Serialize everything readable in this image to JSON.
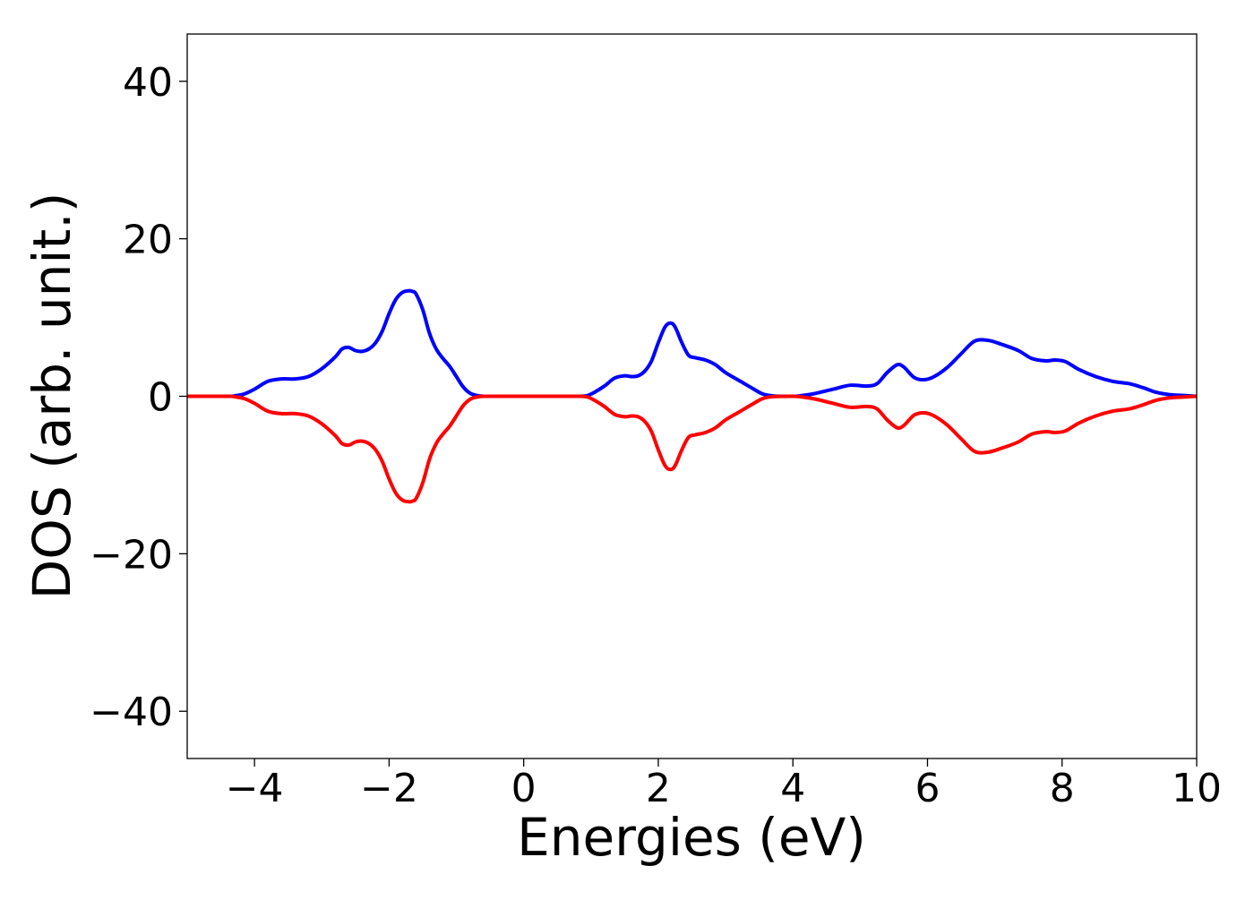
{
  "chart_data": {
    "type": "line",
    "title": "",
    "xlabel": "Energies (eV)",
    "ylabel": "DOS (arb. unit.)",
    "xlim": [
      -5,
      10
    ],
    "ylim": [
      -46,
      46
    ],
    "xticks": [
      -4,
      -2,
      0,
      2,
      4,
      6,
      8,
      10
    ],
    "yticks": [
      -40,
      -20,
      0,
      20,
      40
    ],
    "xtick_labels": [
      "−4",
      "−2",
      "0",
      "2",
      "4",
      "6",
      "8",
      "10"
    ],
    "ytick_labels": [
      "−40",
      "−20",
      "0",
      "20",
      "40"
    ],
    "grid": false,
    "legend": "none",
    "x": [
      -5.0,
      -4.4,
      -4.3,
      -4.15,
      -4.0,
      -3.8,
      -3.6,
      -3.4,
      -3.2,
      -3.0,
      -2.8,
      -2.7,
      -2.6,
      -2.5,
      -2.4,
      -2.3,
      -2.2,
      -2.1,
      -2.0,
      -1.9,
      -1.8,
      -1.7,
      -1.65,
      -1.6,
      -1.5,
      -1.4,
      -1.3,
      -1.2,
      -1.1,
      -1.0,
      -0.9,
      -0.8,
      -0.7,
      -0.6,
      -0.5,
      0.0,
      0.5,
      0.85,
      0.95,
      1.05,
      1.2,
      1.35,
      1.5,
      1.6,
      1.7,
      1.8,
      1.9,
      2.0,
      2.1,
      2.18,
      2.25,
      2.35,
      2.45,
      2.55,
      2.7,
      2.85,
      3.0,
      3.2,
      3.4,
      3.55,
      3.7,
      4.0,
      4.1,
      4.3,
      4.6,
      4.85,
      5.1,
      5.25,
      5.4,
      5.55,
      5.65,
      5.8,
      5.95,
      6.1,
      6.3,
      6.5,
      6.7,
      6.9,
      7.1,
      7.35,
      7.55,
      7.75,
      7.9,
      8.05,
      8.25,
      8.5,
      8.75,
      9.0,
      9.2,
      9.4,
      9.6,
      9.8,
      10.0
    ],
    "series": [
      {
        "color": "#0000ff",
        "y": [
          0.0,
          0.0,
          0.05,
          0.3,
          0.9,
          1.9,
          2.2,
          2.2,
          2.5,
          3.5,
          5.0,
          6.0,
          6.2,
          5.8,
          5.7,
          6.0,
          6.8,
          8.3,
          10.5,
          12.3,
          13.2,
          13.4,
          13.3,
          13.0,
          11.0,
          8.0,
          6.0,
          4.8,
          3.8,
          2.5,
          1.2,
          0.4,
          0.1,
          0.0,
          0.0,
          0.0,
          0.0,
          0.0,
          0.1,
          0.5,
          1.3,
          2.3,
          2.6,
          2.5,
          2.6,
          3.2,
          4.5,
          6.8,
          8.8,
          9.3,
          8.8,
          6.8,
          5.2,
          4.9,
          4.6,
          4.0,
          3.0,
          2.0,
          1.0,
          0.3,
          0.05,
          0.0,
          0.05,
          0.3,
          0.9,
          1.4,
          1.3,
          1.6,
          3.0,
          4.0,
          3.7,
          2.4,
          2.1,
          2.5,
          3.7,
          5.4,
          7.0,
          7.1,
          6.6,
          5.8,
          4.8,
          4.5,
          4.6,
          4.4,
          3.4,
          2.5,
          1.9,
          1.6,
          1.1,
          0.5,
          0.2,
          0.1,
          0.0
        ]
      },
      {
        "color": "#ff0000",
        "y": [
          0.0,
          0.0,
          -0.05,
          -0.3,
          -0.9,
          -1.9,
          -2.2,
          -2.2,
          -2.5,
          -3.5,
          -5.0,
          -6.0,
          -6.2,
          -5.8,
          -5.7,
          -6.0,
          -6.8,
          -8.3,
          -10.5,
          -12.3,
          -13.2,
          -13.4,
          -13.3,
          -13.0,
          -11.0,
          -8.0,
          -6.0,
          -4.8,
          -3.8,
          -2.5,
          -1.2,
          -0.4,
          -0.1,
          0.0,
          0.0,
          0.0,
          0.0,
          0.0,
          -0.1,
          -0.5,
          -1.3,
          -2.3,
          -2.6,
          -2.5,
          -2.6,
          -3.2,
          -4.5,
          -6.8,
          -8.8,
          -9.3,
          -8.8,
          -6.8,
          -5.2,
          -4.9,
          -4.6,
          -4.0,
          -3.0,
          -2.0,
          -1.0,
          -0.3,
          -0.05,
          0.0,
          -0.05,
          -0.3,
          -0.9,
          -1.4,
          -1.3,
          -1.6,
          -3.0,
          -4.0,
          -3.7,
          -2.4,
          -2.1,
          -2.5,
          -3.7,
          -5.4,
          -7.0,
          -7.1,
          -6.6,
          -5.8,
          -4.8,
          -4.5,
          -4.6,
          -4.4,
          -3.4,
          -2.5,
          -1.9,
          -1.6,
          -1.1,
          -0.5,
          -0.2,
          -0.1,
          0.0
        ]
      }
    ]
  }
}
